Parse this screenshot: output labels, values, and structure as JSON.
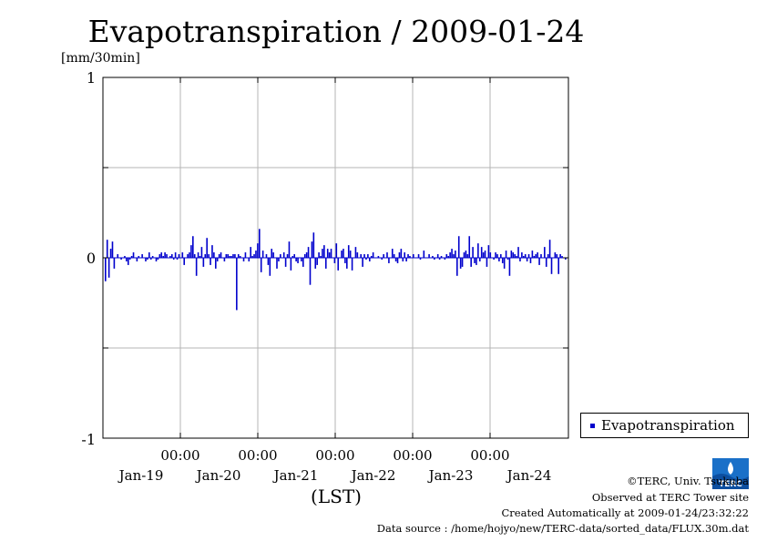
{
  "chart_data": {
    "type": "bar",
    "title": "Evapotranspiration / 2009-01-24",
    "ylabel": "[mm/30min]",
    "xlabel": "(LST)",
    "ylim": [
      -1,
      1
    ],
    "yticks": [
      "1",
      "0",
      "-1"
    ],
    "x_time_ticks": [
      "00:00",
      "00:00",
      "00:00",
      "00:00",
      "00:00"
    ],
    "x_date_ticks": [
      "Jan-19",
      "Jan-20",
      "Jan-21",
      "Jan-22",
      "Jan-23",
      "Jan-24"
    ],
    "x_range": [
      "2009-01-18 12:00",
      "2009-01-24 24:00"
    ],
    "grid": true,
    "legend_placement": "bottom-right, outside plot",
    "series": [
      {
        "name": "Evapotranspiration",
        "color": "#0000cc",
        "interval": "30min",
        "values": [
          -0.13,
          0.1,
          -0.11,
          0.05,
          0.09,
          -0.06,
          0.0,
          0.02,
          0.0,
          -0.01,
          0.0,
          0.01,
          -0.02,
          -0.04,
          -0.01,
          0.01,
          0.03,
          0.0,
          -0.02,
          0.01,
          0.0,
          0.02,
          0.0,
          -0.02,
          -0.01,
          0.03,
          -0.01,
          0.01,
          0.0,
          -0.02,
          -0.01,
          0.02,
          0.03,
          0.01,
          0.03,
          0.02,
          0.0,
          0.01,
          0.02,
          -0.01,
          0.03,
          -0.01,
          0.02,
          0.0,
          0.03,
          -0.04,
          0.0,
          0.02,
          0.03,
          0.07,
          0.12,
          0.02,
          -0.1,
          0.03,
          0.01,
          0.06,
          -0.05,
          0.02,
          0.11,
          0.02,
          -0.04,
          0.07,
          0.03,
          -0.06,
          -0.02,
          0.02,
          0.03,
          0.0,
          -0.02,
          0.02,
          0.02,
          0.01,
          0.01,
          0.02,
          0.02,
          -0.29,
          0.02,
          0.01,
          0.0,
          -0.02,
          0.03,
          0.0,
          -0.02,
          0.06,
          0.01,
          0.02,
          0.04,
          0.08,
          0.16,
          -0.08,
          0.04,
          0.0,
          0.02,
          -0.04,
          -0.1,
          0.05,
          0.03,
          0.0,
          -0.06,
          -0.02,
          0.02,
          0.0,
          0.03,
          -0.05,
          0.02,
          0.09,
          -0.07,
          0.01,
          0.02,
          -0.02,
          -0.03,
          0.0,
          -0.02,
          -0.05,
          0.02,
          0.03,
          0.06,
          -0.15,
          0.09,
          0.14,
          -0.06,
          -0.04,
          0.03,
          0.01,
          0.05,
          0.07,
          -0.06,
          0.05,
          0.03,
          0.05,
          0.0,
          -0.03,
          0.08,
          -0.07,
          0.0,
          0.04,
          0.05,
          -0.03,
          -0.06,
          0.07,
          0.04,
          -0.07,
          0.0,
          0.06,
          0.03,
          0.0,
          0.02,
          -0.05,
          0.02,
          -0.01,
          0.02,
          -0.02,
          0.01,
          0.03,
          0.0,
          0.0,
          0.01,
          0.0,
          -0.01,
          0.02,
          0.0,
          0.03,
          -0.03,
          0.0,
          0.05,
          0.02,
          -0.02,
          -0.03,
          0.03,
          0.05,
          -0.02,
          0.03,
          -0.02,
          0.02,
          0.01,
          0.0,
          0.02,
          0.0,
          0.0,
          0.02,
          -0.01,
          0.0,
          0.04,
          0.0,
          0.0,
          0.02,
          0.0,
          0.01,
          -0.01,
          0.0,
          0.02,
          -0.01,
          0.01,
          0.0,
          -0.01,
          0.02,
          0.01,
          0.03,
          0.05,
          0.02,
          0.04,
          -0.1,
          0.12,
          -0.06,
          -0.05,
          0.03,
          0.04,
          0.02,
          0.12,
          -0.05,
          0.06,
          -0.03,
          -0.04,
          0.08,
          -0.02,
          0.06,
          0.03,
          0.04,
          -0.05,
          0.07,
          0.03,
          0.0,
          -0.01,
          0.03,
          0.02,
          -0.02,
          0.02,
          -0.03,
          -0.06,
          0.04,
          -0.01,
          -0.1,
          0.04,
          0.03,
          0.02,
          0.01,
          0.06,
          -0.02,
          0.03,
          0.01,
          0.02,
          -0.02,
          0.02,
          -0.03,
          0.04,
          0.01,
          0.02,
          0.03,
          -0.04,
          0.02,
          0.0,
          0.06,
          -0.05,
          0.02,
          0.1,
          -0.09,
          0.0,
          0.03,
          0.02,
          -0.09,
          0.02,
          0.01,
          0.0,
          -0.01
        ]
      }
    ]
  },
  "legend": {
    "label": "Evapotranspiration"
  },
  "credits": {
    "copyright": "©TERC, Univ. Tsukuba",
    "observed": "Observed at TERC Tower site",
    "created": "Created Automatically at 2009-01-24/23:32:22",
    "source": "Data source : /home/hojyo/new/TERC-data/sorted_data/FLUX.30m.dat"
  },
  "logo": {
    "text": "TERC",
    "color": "#1a70c8"
  }
}
